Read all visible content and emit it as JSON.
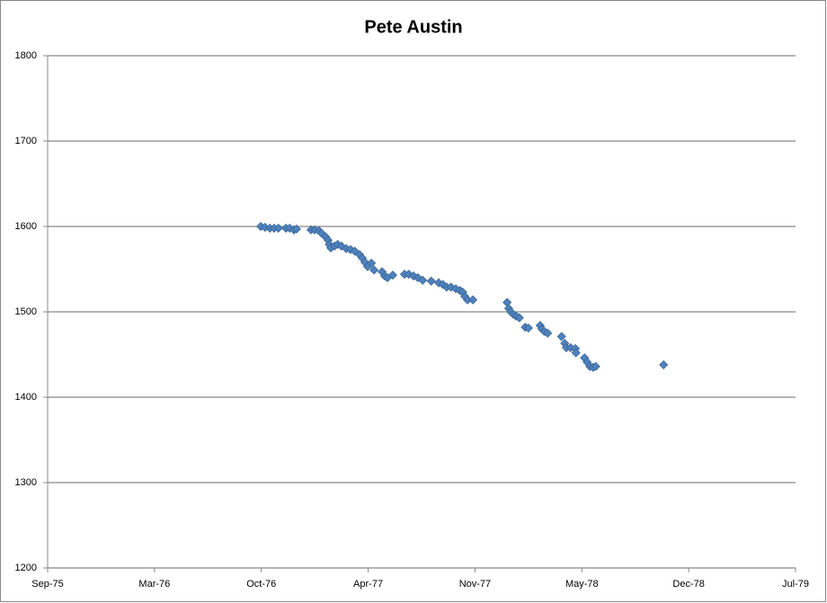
{
  "chart_data": {
    "type": "scatter",
    "title": "Pete Austin",
    "series": [
      {
        "color": "#4f81bd",
        "x": [
          28039,
          28047,
          28056,
          28064,
          28072,
          28086,
          28093,
          28101,
          28106,
          28133,
          28140,
          28148,
          28153,
          28160,
          28165,
          28167,
          28170,
          28177,
          28183,
          28190,
          28199,
          28207,
          28215,
          28224,
          28229,
          28234,
          28239,
          28246,
          28251,
          28266,
          28271,
          28276,
          28286,
          28308,
          28316,
          28325,
          28333,
          28342,
          28358,
          28372,
          28380,
          28387,
          28395,
          28404,
          28412,
          28417,
          28421,
          28426,
          28436,
          28500,
          28503,
          28507,
          28512,
          28517,
          28523,
          28534,
          28540,
          28562,
          28565,
          28570,
          28576,
          28602,
          28608,
          28611,
          28619,
          28628,
          28629,
          28645,
          28650,
          28655,
          28661,
          28666,
          28793
        ],
        "values": [
          1600,
          1599,
          1598,
          1598,
          1598,
          1598,
          1598,
          1596,
          1597,
          1596,
          1596,
          1595,
          1592,
          1588,
          1584,
          1579,
          1575,
          1577,
          1579,
          1577,
          1574,
          1573,
          1571,
          1567,
          1563,
          1558,
          1553,
          1557,
          1549,
          1547,
          1542,
          1540,
          1543,
          1544,
          1544,
          1542,
          1540,
          1537,
          1536,
          1534,
          1532,
          1529,
          1529,
          1527,
          1525,
          1523,
          1518,
          1514,
          1514,
          1511,
          1504,
          1500,
          1497,
          1495,
          1493,
          1482,
          1481,
          1484,
          1480,
          1477,
          1475,
          1471,
          1463,
          1458,
          1458,
          1457,
          1452,
          1446,
          1441,
          1436,
          1435,
          1436,
          1438
        ]
      }
    ],
    "xlim": [
      27640,
      29040
    ],
    "xticks": [
      {
        "value": 27640,
        "label": "Sep-75"
      },
      {
        "value": 27840,
        "label": "Mar-76"
      },
      {
        "value": 28040,
        "label": "Oct-76"
      },
      {
        "value": 28240,
        "label": "Apr-77"
      },
      {
        "value": 28440,
        "label": "Nov-77"
      },
      {
        "value": 28640,
        "label": "May-78"
      },
      {
        "value": 28840,
        "label": "Dec-78"
      },
      {
        "value": 29040,
        "label": "Jul-79"
      }
    ],
    "ylim": [
      1200,
      1800
    ],
    "yticks": [
      1200,
      1300,
      1400,
      1500,
      1600,
      1700,
      1800
    ],
    "grid": true
  }
}
